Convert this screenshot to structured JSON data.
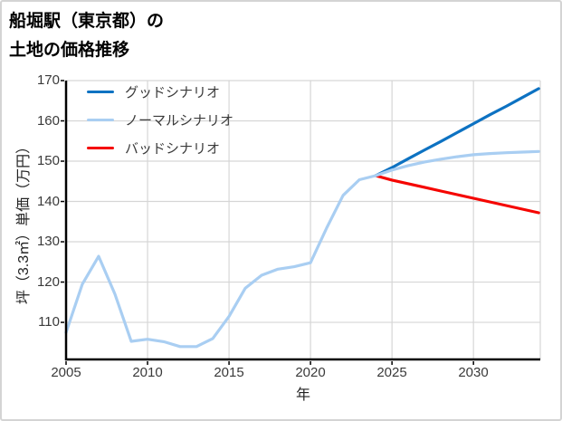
{
  "title": {
    "line1": "船堀駅（東京都）の",
    "line2": "土地の価格推移"
  },
  "colors": {
    "good": "#0d72c2",
    "normal": "#a9cef2",
    "bad": "#f50500",
    "grid": "#d6d6d6",
    "spine": "#000000",
    "frame_border": "#d4d4d4",
    "tick_text": "#3a3a3a",
    "background": "#ffffff"
  },
  "chart_data": {
    "type": "line",
    "title": "船堀駅（東京都）の土地の価格推移",
    "xlabel": "年",
    "ylabel": "坪（3.3㎡）単価（万円）",
    "xlim": [
      2005,
      2034.1
    ],
    "ylim": [
      100.8,
      170
    ],
    "x_ticks": [
      2005,
      2010,
      2015,
      2020,
      2025,
      2030
    ],
    "y_ticks": [
      170,
      160,
      150,
      140,
      130,
      120,
      110
    ],
    "grid": true,
    "legend_position": "upper left",
    "draw_order": [
      2,
      0,
      1
    ],
    "series": [
      {
        "id": "good",
        "name": "グッドシナリオ",
        "color": "#0d72c2",
        "x": [
          2024,
          2025,
          2026,
          2027,
          2028,
          2029,
          2030,
          2031,
          2032,
          2033,
          2034
        ],
        "values": [
          146.4,
          148.4,
          150.6,
          152.8,
          154.9,
          157.1,
          159.3,
          161.5,
          163.6,
          165.8,
          168.0
        ]
      },
      {
        "id": "normal",
        "name": "ノーマルシナリオ",
        "color": "#a9cef2",
        "x": [
          2005,
          2006,
          2007,
          2008,
          2009,
          2010,
          2011,
          2012,
          2013,
          2014,
          2015,
          2016,
          2017,
          2018,
          2019,
          2020,
          2021,
          2022,
          2023,
          2024,
          2025,
          2026,
          2027,
          2028,
          2029,
          2030,
          2031,
          2032,
          2033,
          2034
        ],
        "values": [
          107.5,
          119.5,
          126.4,
          117.0,
          105.3,
          105.8,
          105.2,
          104.0,
          104.0,
          106.0,
          111.5,
          118.5,
          121.7,
          123.2,
          123.8,
          124.8,
          133.5,
          141.5,
          145.4,
          146.4,
          147.8,
          148.9,
          149.8,
          150.5,
          151.1,
          151.6,
          151.9,
          152.1,
          152.25,
          152.4
        ]
      },
      {
        "id": "bad",
        "name": "バッドシナリオ",
        "color": "#f50500",
        "x": [
          2024,
          2025,
          2026,
          2027,
          2028,
          2029,
          2030,
          2031,
          2032,
          2033,
          2034
        ],
        "values": [
          146.4,
          145.3,
          144.4,
          143.5,
          142.6,
          141.7,
          140.8,
          139.9,
          139.0,
          138.1,
          137.2
        ]
      }
    ]
  }
}
